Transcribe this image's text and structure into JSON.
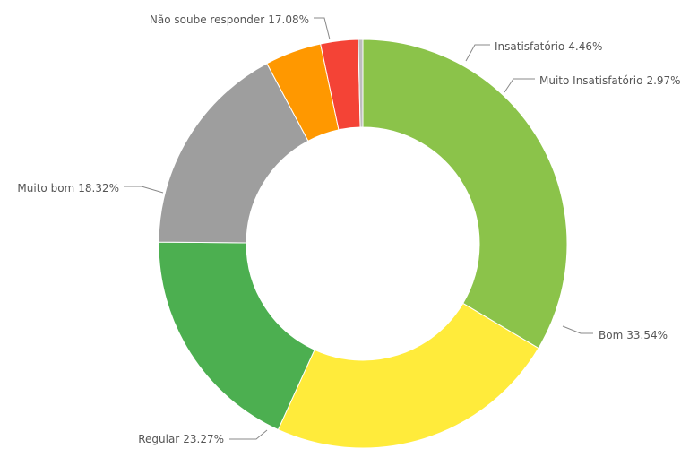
{
  "chart_data": {
    "type": "donut",
    "categories": [
      "Bom",
      "Regular",
      "Muito bom",
      "Não soube responder",
      "Insatisfatório",
      "Muito Insatisfatório",
      null
    ],
    "values": [
      33.54,
      23.27,
      18.32,
      17.08,
      4.46,
      2.97,
      0.36
    ],
    "value_labels": [
      "33.54%",
      "23.27%",
      "18.32%",
      "17.08%",
      "4.46%",
      "2.97%",
      null
    ],
    "colors": [
      "#8bc34a",
      "#ffeb3b",
      "#4caf50",
      "#9e9e9e",
      "#ff9800",
      "#f44336",
      "#bdbdbd"
    ]
  }
}
